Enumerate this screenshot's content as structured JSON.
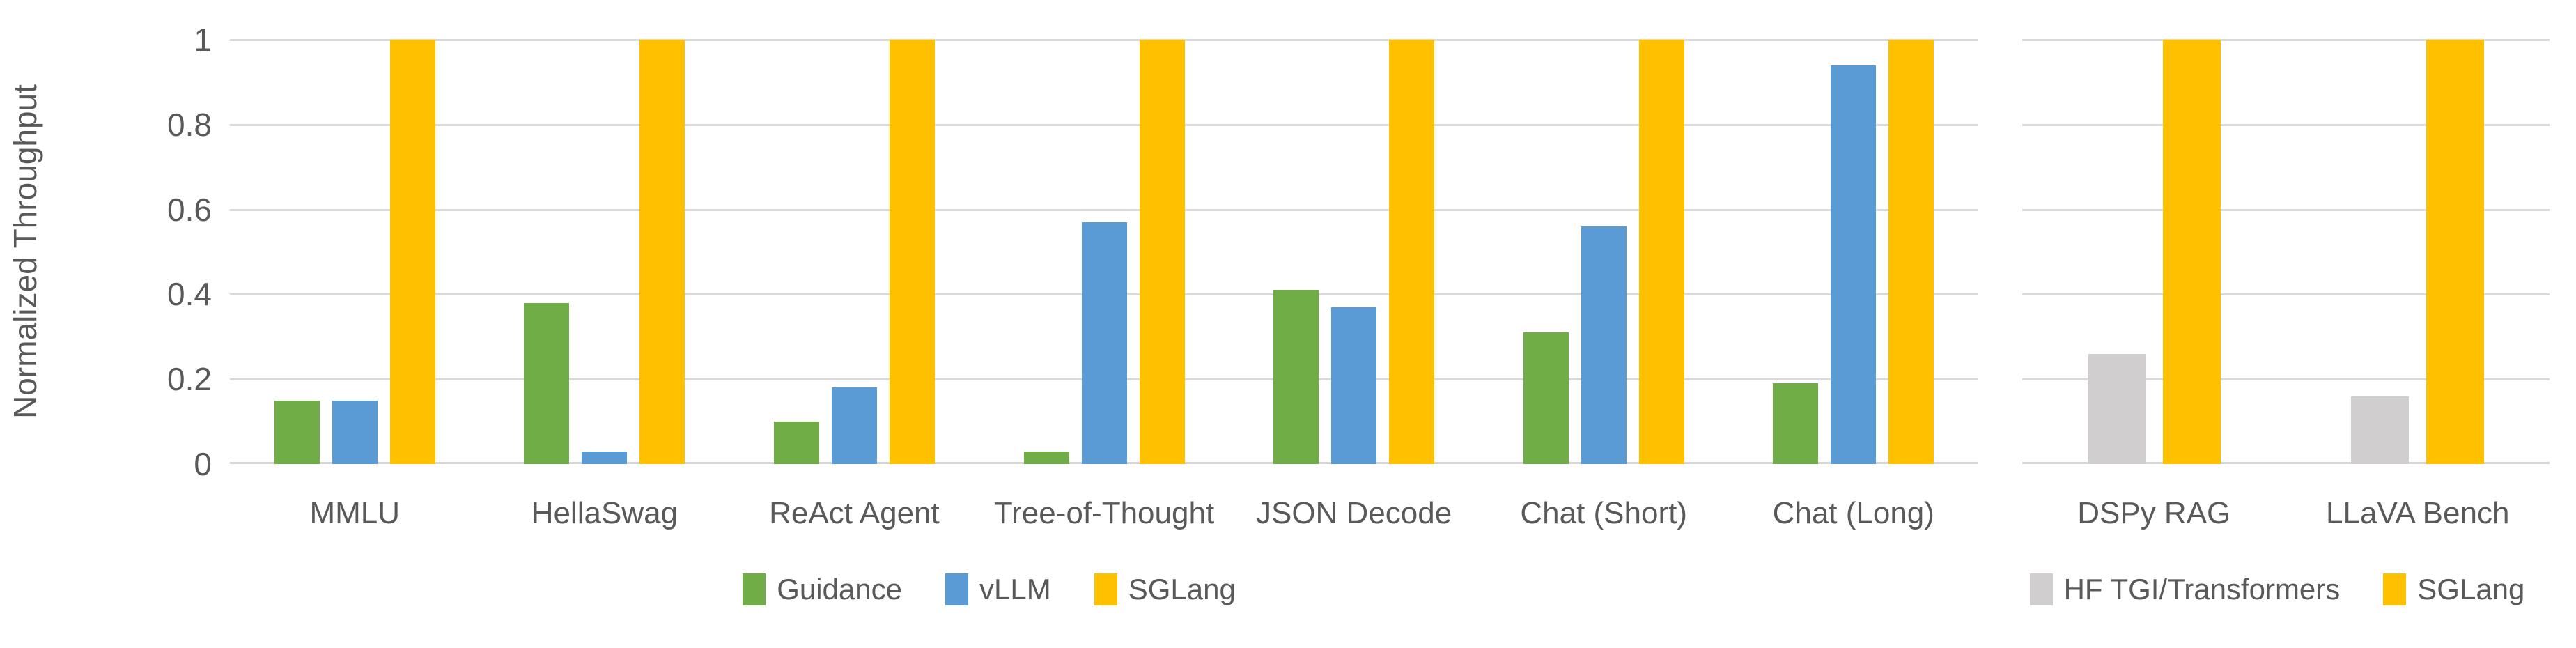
{
  "figure": {
    "background": "#FFFFFF",
    "text_color": "#595959",
    "gridline_color": "#D9D9D9",
    "axis_line_color": "#D6D6D6"
  },
  "y_axis": {
    "label": "Normalized Throughput",
    "ticks": [
      "1",
      "0.8",
      "0.6",
      "0.4",
      "0.2",
      "0"
    ],
    "tick_values": [
      1,
      0.8,
      0.6,
      0.4,
      0.2,
      0
    ],
    "min": 0,
    "max": 1
  },
  "chart_data": [
    {
      "type": "bar",
      "title": "",
      "ylabel": "Normalized Throughput",
      "ylim": [
        0,
        1
      ],
      "grid": true,
      "legend_position": "bottom",
      "categories": [
        "MMLU",
        "HellaSwag",
        "ReAct Agent",
        "Tree-of-Thought",
        "JSON Decode",
        "Chat (Short)",
        "Chat (Long)"
      ],
      "series": [
        {
          "name": "Guidance",
          "color": "#70AD47",
          "values": [
            0.15,
            0.38,
            0.1,
            0.03,
            0.41,
            0.31,
            0.19
          ]
        },
        {
          "name": "vLLM",
          "color": "#5B9BD5",
          "values": [
            0.15,
            0.03,
            0.18,
            0.57,
            0.37,
            0.56,
            0.94
          ]
        },
        {
          "name": "SGLang",
          "color": "#FFC000",
          "values": [
            1,
            1,
            1,
            1,
            1,
            1,
            1
          ]
        }
      ]
    },
    {
      "type": "bar",
      "title": "",
      "ylabel": "Normalized Throughput",
      "ylim": [
        0,
        1
      ],
      "grid": true,
      "legend_position": "bottom",
      "categories": [
        "DSPy RAG",
        "LLaVA Bench"
      ],
      "series": [
        {
          "name": "HF TGI/Transformers",
          "color": "#D0CECE",
          "values": [
            0.26,
            0.16
          ]
        },
        {
          "name": "SGLang",
          "color": "#FFC000",
          "values": [
            1,
            1
          ]
        }
      ]
    }
  ]
}
